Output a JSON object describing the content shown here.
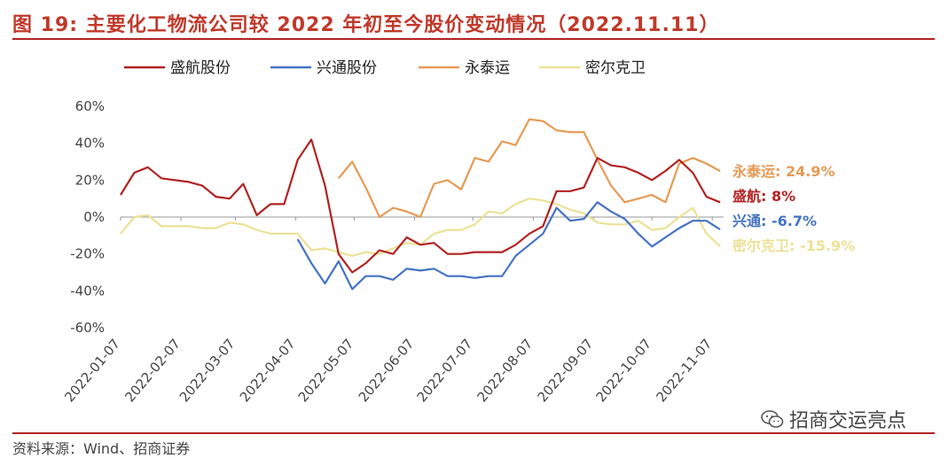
{
  "header": {
    "title": "图 19:  主要化工物流公司较 2022 年初至今股价变动情况（2022.11.11）"
  },
  "footer": {
    "source": "资料来源：Wind、招商证券",
    "watermark": "招商交运亮点",
    "watermark_icon": "wechat-icon"
  },
  "colors": {
    "title": "#c0392b",
    "rule": "#b22222",
    "盛航股份": "#b22222",
    "兴通股份": "#4472c4",
    "永泰运": "#e69a55",
    "密尔克卫": "#ece196"
  },
  "chart_data": {
    "type": "line",
    "title": "",
    "xlabel": "",
    "ylabel": "",
    "ylim": [
      -60,
      60
    ],
    "yticks": [
      "60%",
      "40%",
      "20%",
      "0%",
      "-20%",
      "-40%",
      "-60%"
    ],
    "ytick_values": [
      60,
      40,
      20,
      0,
      -20,
      -40,
      -60
    ],
    "xticks": [
      "2022-01-07",
      "2022-02-07",
      "2022-03-07",
      "2022-04-07",
      "2022-05-07",
      "2022-06-07",
      "2022-07-07",
      "2022-08-07",
      "2022-09-07",
      "2022-10-07",
      "2022-11-07"
    ],
    "xtick_dates": [
      "2022-01-07",
      "2022-02-07",
      "2022-03-07",
      "2022-04-07",
      "2022-05-07",
      "2022-06-07",
      "2022-07-07",
      "2022-08-07",
      "2022-09-07",
      "2022-10-07",
      "2022-11-07"
    ],
    "x_range": [
      "2022-01-07",
      "2022-11-11"
    ],
    "grid": false,
    "legend_position": "top",
    "series": [
      {
        "name": "盛航股份",
        "color": "#b22222",
        "points": [
          [
            "2022-01-07",
            12
          ],
          [
            "2022-01-14",
            24
          ],
          [
            "2022-01-21",
            27
          ],
          [
            "2022-01-28",
            21
          ],
          [
            "2022-02-11",
            19
          ],
          [
            "2022-02-18",
            17
          ],
          [
            "2022-02-25",
            11
          ],
          [
            "2022-03-04",
            10
          ],
          [
            "2022-03-11",
            18
          ],
          [
            "2022-03-18",
            1
          ],
          [
            "2022-03-25",
            7
          ],
          [
            "2022-04-01",
            7
          ],
          [
            "2022-04-08",
            31
          ],
          [
            "2022-04-15",
            42
          ],
          [
            "2022-04-22",
            17
          ],
          [
            "2022-04-29",
            -20
          ],
          [
            "2022-05-06",
            -30
          ],
          [
            "2022-05-13",
            -25
          ],
          [
            "2022-05-20",
            -18
          ],
          [
            "2022-05-27",
            -20
          ],
          [
            "2022-06-03",
            -11
          ],
          [
            "2022-06-10",
            -15
          ],
          [
            "2022-06-17",
            -14
          ],
          [
            "2022-06-24",
            -20
          ],
          [
            "2022-07-01",
            -20
          ],
          [
            "2022-07-08",
            -19
          ],
          [
            "2022-07-15",
            -19
          ],
          [
            "2022-07-22",
            -19
          ],
          [
            "2022-07-29",
            -15
          ],
          [
            "2022-08-05",
            -9
          ],
          [
            "2022-08-12",
            -5
          ],
          [
            "2022-08-19",
            14
          ],
          [
            "2022-08-26",
            14
          ],
          [
            "2022-09-02",
            16
          ],
          [
            "2022-09-09",
            32
          ],
          [
            "2022-09-16",
            28
          ],
          [
            "2022-09-23",
            27
          ],
          [
            "2022-09-30",
            24
          ],
          [
            "2022-10-07",
            20
          ],
          [
            "2022-10-14",
            25
          ],
          [
            "2022-10-21",
            31
          ],
          [
            "2022-10-28",
            24
          ],
          [
            "2022-11-04",
            11
          ],
          [
            "2022-11-11",
            8
          ]
        ]
      },
      {
        "name": "兴通股份",
        "color": "#4472c4",
        "points": [
          [
            "2022-04-08",
            -12
          ],
          [
            "2022-04-15",
            -25
          ],
          [
            "2022-04-22",
            -36
          ],
          [
            "2022-04-29",
            -24
          ],
          [
            "2022-05-06",
            -39
          ],
          [
            "2022-05-13",
            -32
          ],
          [
            "2022-05-20",
            -32
          ],
          [
            "2022-05-27",
            -34
          ],
          [
            "2022-06-03",
            -28
          ],
          [
            "2022-06-10",
            -29
          ],
          [
            "2022-06-17",
            -28
          ],
          [
            "2022-06-24",
            -32
          ],
          [
            "2022-07-01",
            -32
          ],
          [
            "2022-07-08",
            -33
          ],
          [
            "2022-07-15",
            -32
          ],
          [
            "2022-07-22",
            -32
          ],
          [
            "2022-07-29",
            -21
          ],
          [
            "2022-08-05",
            -15
          ],
          [
            "2022-08-12",
            -9
          ],
          [
            "2022-08-19",
            5
          ],
          [
            "2022-08-26",
            -2
          ],
          [
            "2022-09-02",
            -1
          ],
          [
            "2022-09-09",
            8
          ],
          [
            "2022-09-16",
            3
          ],
          [
            "2022-09-23",
            -1
          ],
          [
            "2022-09-30",
            -9
          ],
          [
            "2022-10-07",
            -16
          ],
          [
            "2022-10-14",
            -11
          ],
          [
            "2022-10-21",
            -6
          ],
          [
            "2022-10-28",
            -2
          ],
          [
            "2022-11-04",
            -2
          ],
          [
            "2022-11-11",
            -6.7
          ]
        ]
      },
      {
        "name": "永泰运",
        "color": "#e69a55",
        "points": [
          [
            "2022-04-29",
            21
          ],
          [
            "2022-05-06",
            30
          ],
          [
            "2022-05-13",
            16
          ],
          [
            "2022-05-20",
            0
          ],
          [
            "2022-05-27",
            5
          ],
          [
            "2022-06-03",
            3
          ],
          [
            "2022-06-10",
            0
          ],
          [
            "2022-06-17",
            18
          ],
          [
            "2022-06-24",
            20
          ],
          [
            "2022-07-01",
            15
          ],
          [
            "2022-07-08",
            32
          ],
          [
            "2022-07-15",
            30
          ],
          [
            "2022-07-22",
            41
          ],
          [
            "2022-07-29",
            39
          ],
          [
            "2022-08-05",
            53
          ],
          [
            "2022-08-12",
            52
          ],
          [
            "2022-08-19",
            47
          ],
          [
            "2022-08-26",
            46
          ],
          [
            "2022-09-02",
            46
          ],
          [
            "2022-09-09",
            31
          ],
          [
            "2022-09-16",
            17
          ],
          [
            "2022-09-23",
            8
          ],
          [
            "2022-09-30",
            10
          ],
          [
            "2022-10-07",
            12
          ],
          [
            "2022-10-14",
            8
          ],
          [
            "2022-10-21",
            29
          ],
          [
            "2022-10-28",
            32
          ],
          [
            "2022-11-04",
            29
          ],
          [
            "2022-11-11",
            24.9
          ]
        ]
      },
      {
        "name": "密尔克卫",
        "color": "#ece196",
        "points": [
          [
            "2022-01-07",
            -9
          ],
          [
            "2022-01-14",
            0
          ],
          [
            "2022-01-21",
            1
          ],
          [
            "2022-01-28",
            -5
          ],
          [
            "2022-02-11",
            -5
          ],
          [
            "2022-02-18",
            -6
          ],
          [
            "2022-02-25",
            -6
          ],
          [
            "2022-03-04",
            -3
          ],
          [
            "2022-03-11",
            -4
          ],
          [
            "2022-03-18",
            -7
          ],
          [
            "2022-03-25",
            -9
          ],
          [
            "2022-04-01",
            -9
          ],
          [
            "2022-04-08",
            -9
          ],
          [
            "2022-04-15",
            -18
          ],
          [
            "2022-04-22",
            -17
          ],
          [
            "2022-04-29",
            -19
          ],
          [
            "2022-05-06",
            -21
          ],
          [
            "2022-05-13",
            -19
          ],
          [
            "2022-05-20",
            -20
          ],
          [
            "2022-05-27",
            -17
          ],
          [
            "2022-06-03",
            -14
          ],
          [
            "2022-06-10",
            -15
          ],
          [
            "2022-06-17",
            -9
          ],
          [
            "2022-06-24",
            -7
          ],
          [
            "2022-07-01",
            -7
          ],
          [
            "2022-07-08",
            -4
          ],
          [
            "2022-07-15",
            3
          ],
          [
            "2022-07-22",
            2
          ],
          [
            "2022-07-29",
            7
          ],
          [
            "2022-08-05",
            10
          ],
          [
            "2022-08-12",
            9
          ],
          [
            "2022-08-19",
            7
          ],
          [
            "2022-08-26",
            4
          ],
          [
            "2022-09-02",
            2
          ],
          [
            "2022-09-09",
            -3
          ],
          [
            "2022-09-16",
            -4
          ],
          [
            "2022-09-23",
            -4
          ],
          [
            "2022-09-30",
            -2
          ],
          [
            "2022-10-07",
            -7
          ],
          [
            "2022-10-14",
            -6
          ],
          [
            "2022-10-21",
            0
          ],
          [
            "2022-10-28",
            5
          ],
          [
            "2022-11-04",
            -9
          ],
          [
            "2022-11-11",
            -15.9
          ]
        ]
      }
    ],
    "annotations": [
      {
        "text": "永泰运: 24.9%",
        "series": "永泰运"
      },
      {
        "text": "盛航: 8%",
        "series": "盛航股份"
      },
      {
        "text": "兴通: -6.7%",
        "series": "兴通股份"
      },
      {
        "text": "密尔克卫: -15.9%",
        "series": "密尔克卫"
      }
    ]
  }
}
